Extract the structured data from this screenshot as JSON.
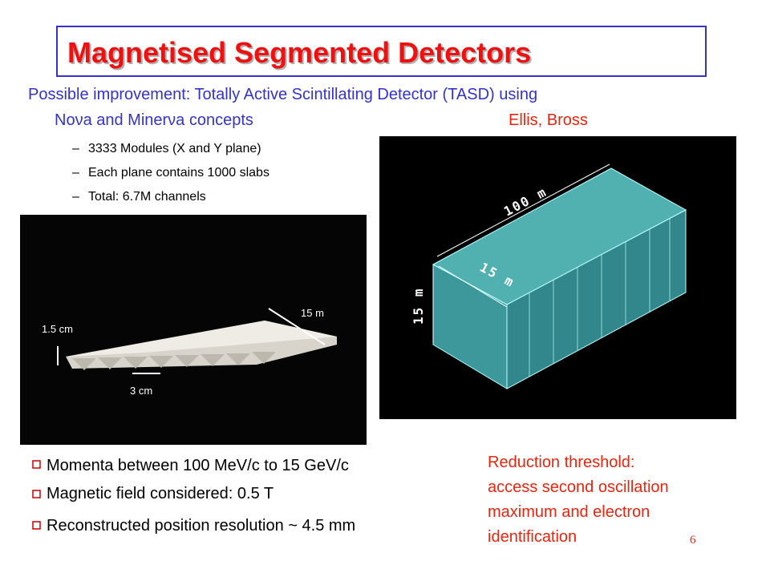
{
  "title": "Magnetised Segmented Detectors",
  "intro": {
    "lines": [
      "Possible improvement: Totally Active Scintillating Detector (TASD) using",
      "Noνa and Minerνa concepts"
    ]
  },
  "credit": "Ellis, Bross",
  "sub_bullets": [
    "3333 Modules (X and Y plane)",
    "Each plane contains 1000 slabs",
    "Total: 6.7M channels"
  ],
  "slab_image": {
    "labels": [
      "1.5 cm",
      "15 m",
      "3 cm"
    ]
  },
  "detector_image": {
    "labels": [
      "100 m",
      "15 m",
      "15 m"
    ]
  },
  "bullets": [
    "Momenta between 100 MeV/c to 15 GeV/c",
    "Magnetic field considered: 0.5 T",
    "Reconstructed position resolution ~ 4.5 mm"
  ],
  "note": {
    "lines": [
      "Reduction threshold:",
      "access second oscillation",
      "maximum and electron",
      "identification"
    ]
  },
  "page_number": "6"
}
